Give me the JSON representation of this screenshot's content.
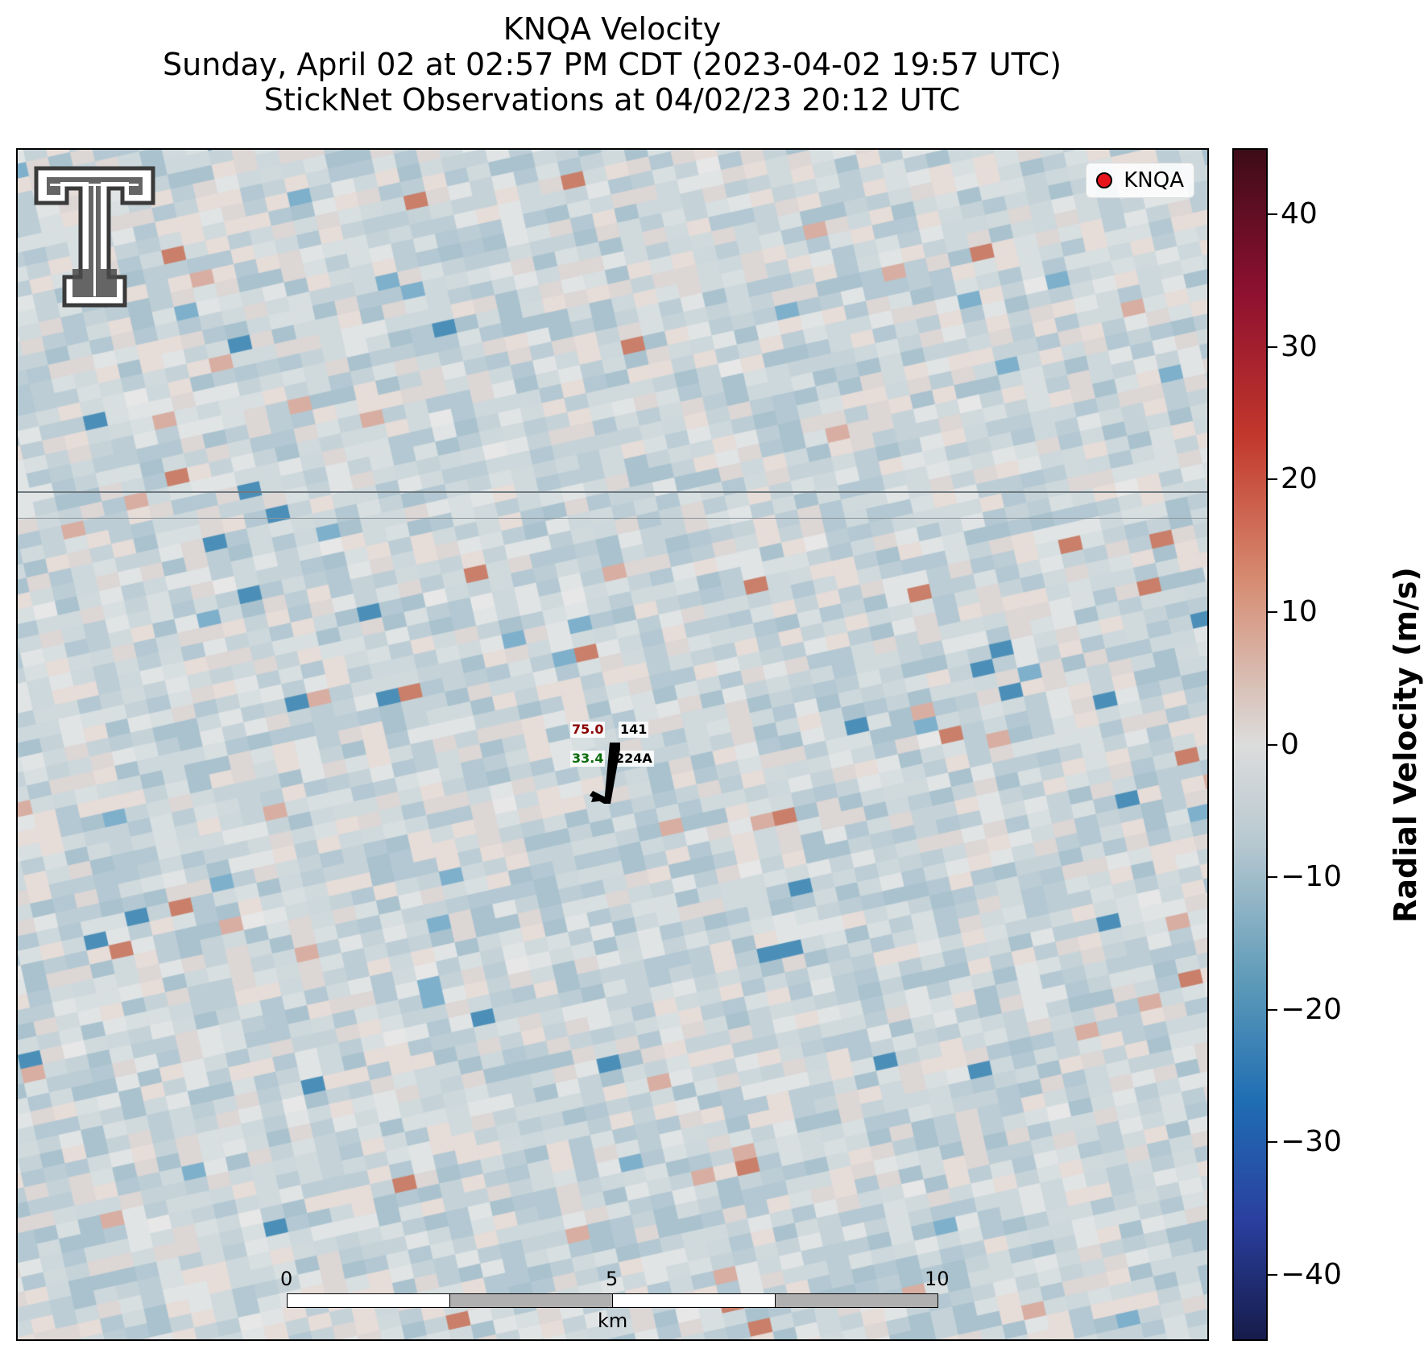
{
  "title": {
    "line1": "KNQA Velocity",
    "line2": "Sunday, April 02 at 02:57 PM CDT (2023-04-02 19:57 UTC)",
    "line3": "StickNet Observations at 04/02/23 20:12 UTC"
  },
  "legend": {
    "label": "KNQA",
    "marker_color": "#e8141c"
  },
  "station": {
    "temperature": "75.0",
    "dewpoint": "33.4",
    "id_top": "141",
    "id_bottom": "224A",
    "temp_color": "#8b0000",
    "dew_color": "#0b6b0b"
  },
  "scale_bar": {
    "ticks": [
      "0",
      "5",
      "10"
    ],
    "unit": "km"
  },
  "colorbar": {
    "label": "Radial Velocity (m/s)",
    "range": [
      -45,
      45
    ],
    "ticks": [
      "40",
      "30",
      "20",
      "10",
      "0",
      "−10",
      "−20",
      "−30",
      "−40"
    ],
    "tick_values": [
      40,
      30,
      20,
      10,
      0,
      -10,
      -20,
      -30,
      -40
    ]
  },
  "logo": {
    "icon": "texas-tech-double-t-logo"
  }
}
